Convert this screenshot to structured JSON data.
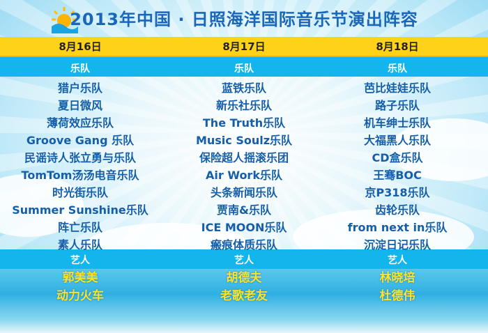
{
  "title": "2013年中国 · 日照海洋国际音乐节演出阵容",
  "colors": {
    "title": "#1a66b8",
    "date_bar": "#ffd21a",
    "section_band": "#13b6ec",
    "band_text": "#155ea8",
    "artist_text": "#ffe326"
  },
  "section_labels": {
    "bands": "乐队",
    "artists": "艺人"
  },
  "days": [
    {
      "date": "8月16日",
      "bands": [
        "猎户乐队",
        "夏日微风",
        "薄荷效应乐队",
        "Groove Gang 乐队",
        "民谣诗人张立勇与乐队",
        "TomTom汤汤电音乐队",
        "时光街乐队",
        "Summer Sunshine乐队",
        "阵亡乐队",
        "素人乐队"
      ],
      "artists": [
        "郭美美",
        "动力火车"
      ]
    },
    {
      "date": "8月17日",
      "bands": [
        "蓝铁乐队",
        "新乐社乐队",
        "The Truth乐队",
        "Music Soulz乐队",
        "保险超人摇滚乐团",
        "Air Work乐队",
        "头条新闻乐队",
        "贾南&乐队",
        "ICE MOON乐队",
        "瘢痕体质乐队"
      ],
      "artists": [
        "胡德夫",
        "老歌老友"
      ]
    },
    {
      "date": "8月18日",
      "bands": [
        "芭比娃娃乐队",
        "路子乐队",
        "机车绅士乐队",
        "大福黑人乐队",
        "CD盒乐队",
        "王骞BOC",
        "京P318乐队",
        "齿轮乐队",
        "from next in乐队",
        "沉淀日记乐队"
      ],
      "artists": [
        "林晓培",
        "杜德伟"
      ]
    }
  ]
}
